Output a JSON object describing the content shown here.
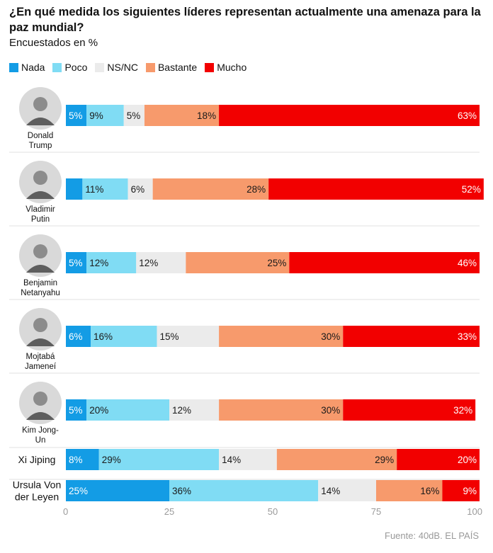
{
  "header": {
    "title": "¿En qué medida los siguientes líderes representan actualmente una amenaza para la paz mundial?",
    "subtitle": "Encuestados en %"
  },
  "source": "Fuente: 40dB. EL PAÍS",
  "colors": {
    "nada": "#139ce5",
    "poco": "#80dcf4",
    "nsnc": "#ebebeb",
    "bastante": "#f79a6c",
    "mucho": "#f20000"
  },
  "chart_data": {
    "type": "bar",
    "orientation": "horizontal",
    "stacked": true,
    "title": "¿En qué medida los siguientes líderes representan actualmente una amenaza para la paz mundial?",
    "subtitle": "Encuestados en %",
    "categories": [
      [
        "Donald",
        "Trump"
      ],
      [
        "Vladimir",
        "Putin"
      ],
      [
        "Benjamin",
        "Netanyahu"
      ],
      [
        "Mojtabá",
        "Jameneí"
      ],
      [
        "Kim Jong-",
        "Un"
      ],
      [
        "Xi Jiping"
      ],
      [
        "Ursula Von",
        "der Leyen"
      ]
    ],
    "series": [
      {
        "name": "Nada",
        "key": "nada",
        "values": [
          5,
          4,
          5,
          6,
          5,
          8,
          25
        ],
        "labels": [
          "5%",
          "",
          "5%",
          "6%",
          "5%",
          "8%",
          "25%"
        ]
      },
      {
        "name": "Poco",
        "key": "poco",
        "values": [
          9,
          11,
          12,
          16,
          20,
          29,
          36
        ],
        "labels": [
          "9%",
          "11%",
          "12%",
          "16%",
          "20%",
          "29%",
          "36%"
        ]
      },
      {
        "name": "NS/NC",
        "key": "nsnc",
        "values": [
          5,
          6,
          12,
          15,
          12,
          14,
          14
        ],
        "labels": [
          "5%",
          "6%",
          "12%",
          "15%",
          "12%",
          "14%",
          "14%"
        ]
      },
      {
        "name": "Bastante",
        "key": "bastante",
        "values": [
          18,
          28,
          25,
          30,
          30,
          29,
          16
        ],
        "labels": [
          "18%",
          "28%",
          "25%",
          "30%",
          "30%",
          "29%",
          "16%"
        ]
      },
      {
        "name": "Mucho",
        "key": "mucho",
        "values": [
          63,
          52,
          46,
          33,
          32,
          20,
          9
        ],
        "labels": [
          "63%",
          "52%",
          "46%",
          "33%",
          "32%",
          "20%",
          "9%"
        ]
      }
    ],
    "xlim": [
      0,
      100
    ],
    "xticks": [
      0,
      25,
      50,
      75,
      100
    ],
    "legend": "top-left",
    "grid": false
  }
}
